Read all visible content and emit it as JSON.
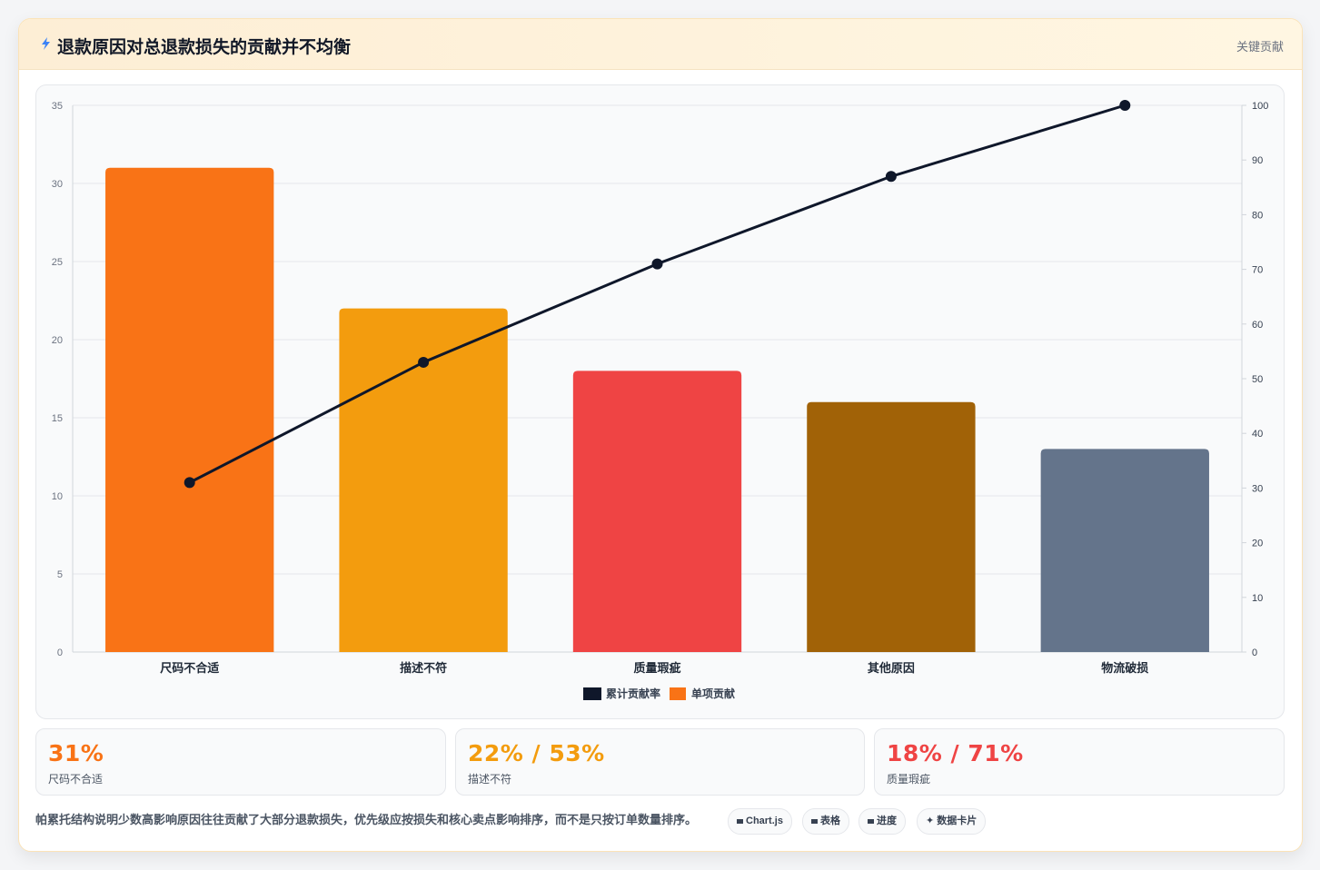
{
  "header": {
    "title": "退款原因对总退款损失的贡献并不均衡",
    "tag": "关键贡献"
  },
  "chart_data": {
    "type": "bar",
    "categories": [
      "尺码不合适",
      "描述不符",
      "质量瑕疵",
      "其他原因",
      "物流破损"
    ],
    "values": [
      31,
      22,
      18,
      16,
      13
    ],
    "bar_colors": [
      "#f97316",
      "#f39c0e",
      "#ef4444",
      "#a16207",
      "#64748b"
    ],
    "series": [
      {
        "name": "单项贡献",
        "values": [
          31,
          22,
          18,
          16,
          13
        ],
        "color": "#f97316"
      },
      {
        "name": "累计贡献率",
        "values": [
          31,
          53,
          71,
          87,
          100
        ],
        "color": "#0f172a",
        "type": "line",
        "axis": "right"
      }
    ],
    "legend": [
      "累计贡献率",
      "单项贡献"
    ],
    "left_ticks": [
      "0",
      "5",
      "10",
      "15",
      "20",
      "25",
      "30",
      "35"
    ],
    "right_ticks": [
      "0",
      "10",
      "20",
      "30",
      "40",
      "50",
      "60",
      "70",
      "80",
      "90",
      "100"
    ],
    "ylim": [
      0,
      35
    ],
    "y2lim": [
      0,
      100
    ],
    "legend_position": "bottom",
    "grid": true
  },
  "stats": [
    {
      "value": "31%",
      "label": "尺码不合适",
      "color": "#f97316"
    },
    {
      "value": "22% / 53%",
      "label": "描述不符",
      "color": "#f39c0e"
    },
    {
      "value": "18% / 71%",
      "label": "质量瑕疵",
      "color": "#ef4444"
    }
  ],
  "note": "帕累托结构说明少数高影响原因往往贡献了大部分退款损失，优先级应按损失和核心卖点影响排序，而不是只按订单数量排序。",
  "chips": [
    "Chart.js",
    "表格",
    "进度",
    "数据卡片"
  ]
}
